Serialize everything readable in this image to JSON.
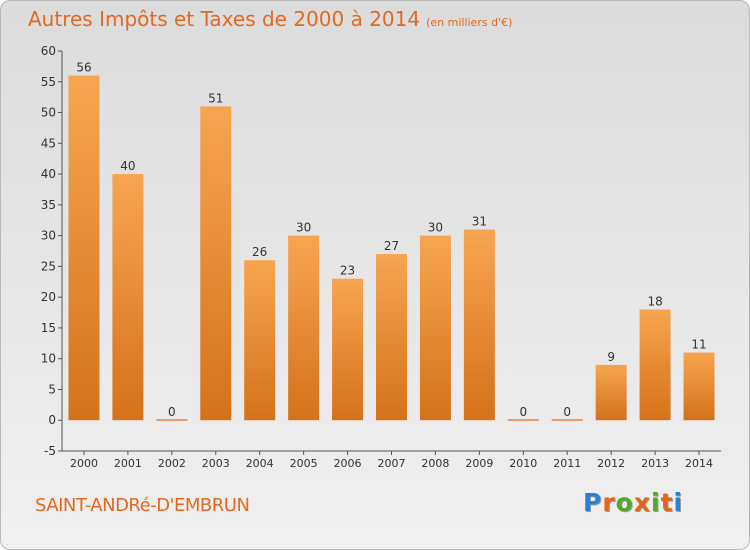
{
  "title": "Autres Impôts et Taxes de 2000 à 2014",
  "unit_note": "(en milliers d'€)",
  "town": "SAINT-ANDRé-D'EMBRUN",
  "logo": "Proxiti",
  "logo_colors": [
    "#2a7fd6",
    "#e2661c",
    "#53a82c",
    "#e2661c",
    "#53a82c",
    "#e2661c",
    "#2a7fd6"
  ],
  "colors": {
    "bar_light": "#f7a550",
    "bar_dark": "#d4721a",
    "accent": "#e2691f",
    "zero_bar": "#e8833a"
  },
  "chart_data": {
    "type": "bar",
    "categories": [
      "2000",
      "2001",
      "2002",
      "2003",
      "2004",
      "2005",
      "2006",
      "2007",
      "2008",
      "2009",
      "2010",
      "2011",
      "2012",
      "2013",
      "2014"
    ],
    "values": [
      56,
      40,
      0,
      51,
      26,
      30,
      23,
      27,
      30,
      31,
      0,
      0,
      9,
      18,
      11
    ],
    "ylim": [
      -5,
      60
    ],
    "yticks": [
      -5,
      0,
      5,
      10,
      15,
      20,
      25,
      30,
      35,
      40,
      45,
      50,
      55,
      60
    ],
    "grid": false,
    "xlabel": "",
    "ylabel": ""
  }
}
